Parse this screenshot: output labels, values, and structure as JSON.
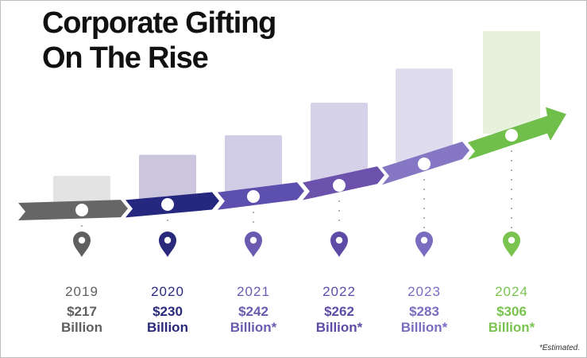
{
  "chart_data": {
    "type": "bar",
    "title": "Corporate Gifting On The Rise",
    "title_lines": [
      "Corporate Gifting",
      "On The Rise"
    ],
    "xlabel": "",
    "ylabel": "",
    "unit": "Billion USD",
    "categories": [
      "2019",
      "2020",
      "2021",
      "2022",
      "2023",
      "2024"
    ],
    "values": [
      217,
      230,
      242,
      262,
      283,
      306
    ],
    "estimated": [
      false,
      false,
      true,
      true,
      true,
      true
    ],
    "value_amounts": [
      "$217",
      "$230",
      "$242",
      "$262",
      "$283",
      "$306"
    ],
    "value_units": [
      "Billion",
      "Billion",
      "Billion*",
      "Billion*",
      "Billion*",
      "Billion*"
    ],
    "ylim": [
      195,
      310
    ],
    "grid": false,
    "footnote": "*Estimated."
  },
  "colors": {
    "bar_fills": [
      "#e3e3e3",
      "#cbc6dd",
      "#d2cde6",
      "#d5d1e8",
      "#dfdcee",
      "#e7f2dc"
    ],
    "text_colors": [
      "#5f5f5f",
      "#2a2a7c",
      "#6a5bb0",
      "#5d4ba6",
      "#7a6cc0",
      "#7ac34f"
    ],
    "segment_colors": [
      "#666666",
      "#262880",
      "#5d4fae",
      "#6c52ac",
      "#8577c4",
      "#6fbf4a"
    ]
  }
}
